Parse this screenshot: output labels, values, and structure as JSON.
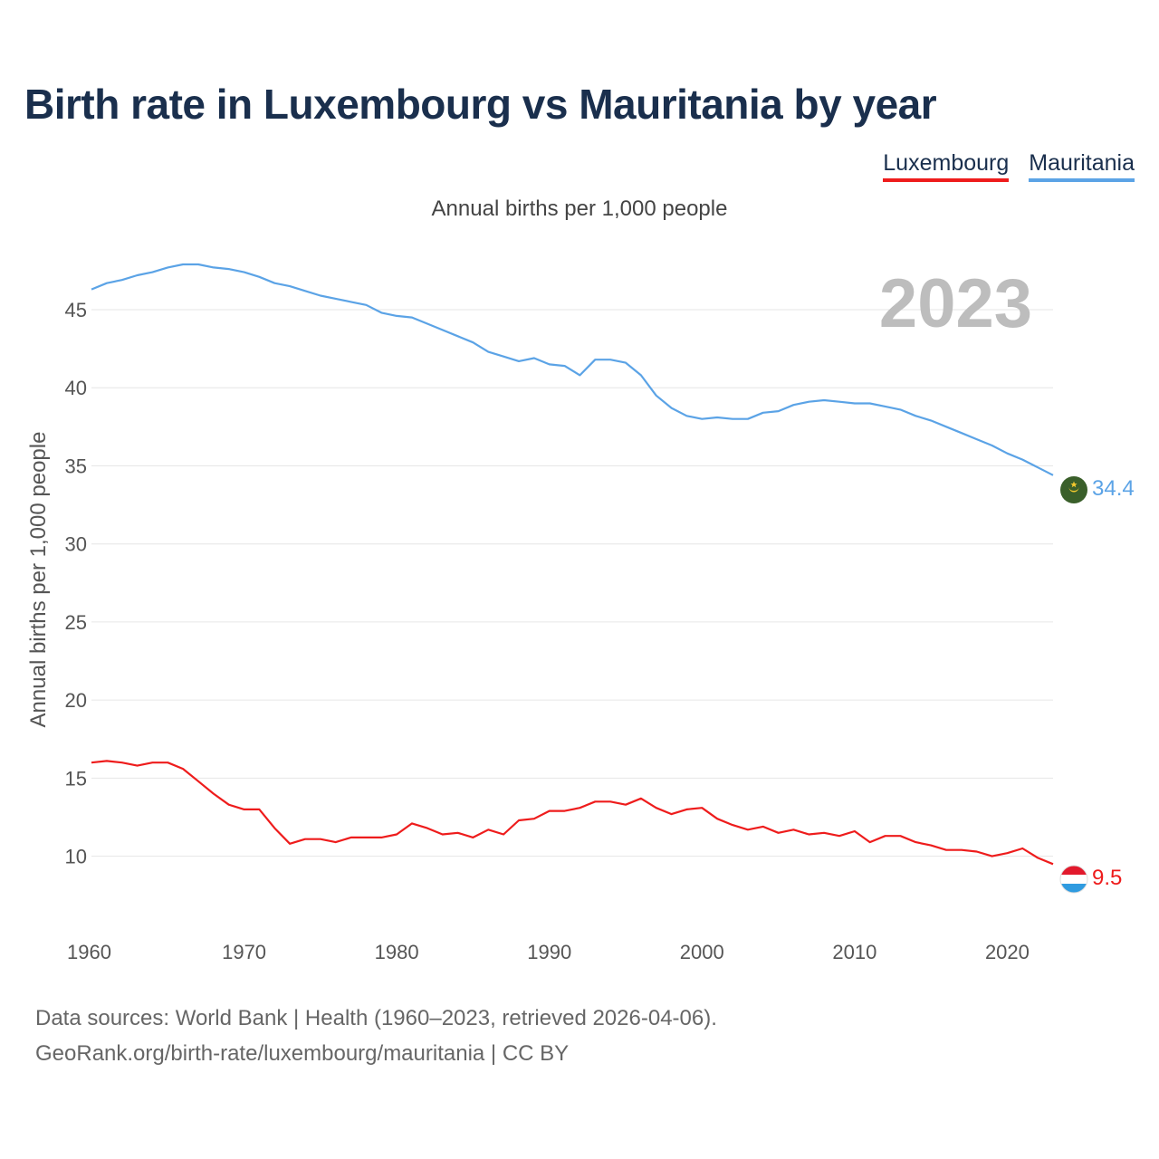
{
  "header": {
    "title": "Birth rate in Luxembourg vs Mauritania by year"
  },
  "subtitle": "Annual births per 1,000 people",
  "legend": [
    {
      "label": "Luxembourg",
      "color": "#ee1c1c"
    },
    {
      "label": "Mauritania",
      "color": "#5ba3e6"
    }
  ],
  "footer": {
    "line1": "Data sources: World Bank | Health (1960–2023, retrieved 2026-04-06).",
    "line2": "GeoRank.org/birth-rate/luxembourg/mauritania | CC BY"
  },
  "chart_data": {
    "type": "line",
    "title": "Birth rate in Luxembourg vs Mauritania by year",
    "ylabel": "Annual births per 1,000 people",
    "xlabel": "",
    "year_label": "2023",
    "xlim": [
      1960,
      2023
    ],
    "ylim": [
      6.5,
      49
    ],
    "xticks": [
      1960,
      1970,
      1980,
      1990,
      2000,
      2010,
      2020
    ],
    "yticks": [
      10,
      15,
      20,
      25,
      30,
      35,
      40,
      45
    ],
    "series": [
      {
        "name": "Luxembourg",
        "color": "#ee1c1c",
        "end_label": "9.5",
        "start_year": 1960,
        "values": [
          16.0,
          16.1,
          16.0,
          15.8,
          16.0,
          16.0,
          15.6,
          14.8,
          14.0,
          13.3,
          13.0,
          13.0,
          11.8,
          10.8,
          11.1,
          11.1,
          10.9,
          11.2,
          11.2,
          11.2,
          11.4,
          12.1,
          11.8,
          11.4,
          11.5,
          11.2,
          11.7,
          11.4,
          12.3,
          12.4,
          12.9,
          12.9,
          13.1,
          13.5,
          13.5,
          13.3,
          13.7,
          13.1,
          12.7,
          13.0,
          13.1,
          12.4,
          12.0,
          11.7,
          11.9,
          11.5,
          11.7,
          11.4,
          11.5,
          11.3,
          11.6,
          10.9,
          11.3,
          11.3,
          10.9,
          10.7,
          10.4,
          10.4,
          10.3,
          10.0,
          10.2,
          10.5,
          9.9,
          9.5
        ]
      },
      {
        "name": "Mauritania",
        "color": "#5ba3e6",
        "end_label": "34.4",
        "start_year": 1960,
        "values": [
          46.3,
          46.7,
          46.9,
          47.2,
          47.4,
          47.7,
          47.9,
          47.9,
          47.7,
          47.6,
          47.4,
          47.1,
          46.7,
          46.5,
          46.2,
          45.9,
          45.7,
          45.5,
          45.3,
          44.8,
          44.6,
          44.5,
          44.1,
          43.7,
          43.3,
          42.9,
          42.3,
          42.0,
          41.7,
          41.9,
          41.5,
          41.4,
          40.8,
          41.8,
          41.8,
          41.6,
          40.8,
          39.5,
          38.7,
          38.2,
          38.0,
          38.1,
          38.0,
          38.0,
          38.4,
          38.5,
          38.9,
          39.1,
          39.2,
          39.1,
          39.0,
          39.0,
          38.8,
          38.6,
          38.2,
          37.9,
          37.5,
          37.1,
          36.7,
          36.3,
          35.8,
          35.4,
          34.9,
          34.4
        ]
      }
    ]
  }
}
